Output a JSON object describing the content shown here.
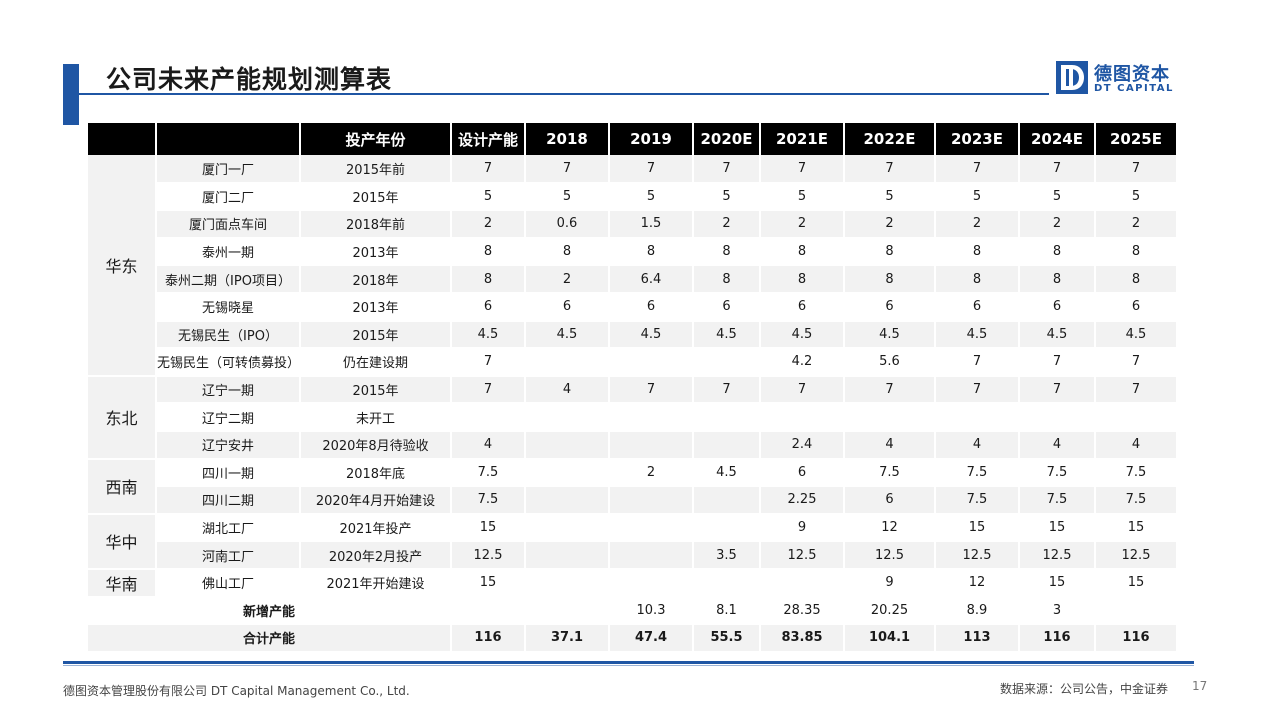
{
  "title": "公司未来产能规划测算表",
  "logo": {
    "cn": "德图资本",
    "en": "DT CAPITAL"
  },
  "table": {
    "headers": [
      "",
      "",
      "投产年份",
      "设计产能",
      "2018",
      "2019",
      "2020E",
      "2021E",
      "2022E",
      "2023E",
      "2024E",
      "2025E"
    ],
    "groups": [
      {
        "region": "华东",
        "rows": [
          {
            "plant": "厦门一厂",
            "year": "2015年前",
            "values": [
              "7",
              "7",
              "7",
              "7",
              "7",
              "7",
              "7",
              "7",
              "7"
            ]
          },
          {
            "plant": "厦门二厂",
            "year": "2015年",
            "values": [
              "5",
              "5",
              "5",
              "5",
              "5",
              "5",
              "5",
              "5",
              "5"
            ]
          },
          {
            "plant": "厦门面点车间",
            "year": "2018年前",
            "values": [
              "2",
              "0.6",
              "1.5",
              "2",
              "2",
              "2",
              "2",
              "2",
              "2"
            ]
          },
          {
            "plant": "泰州一期",
            "year": "2013年",
            "values": [
              "8",
              "8",
              "8",
              "8",
              "8",
              "8",
              "8",
              "8",
              "8"
            ]
          },
          {
            "plant": "泰州二期（IPO项目）",
            "year": "2018年",
            "values": [
              "8",
              "2",
              "6.4",
              "8",
              "8",
              "8",
              "8",
              "8",
              "8"
            ]
          },
          {
            "plant": "无锡晓星",
            "year": "2013年",
            "values": [
              "6",
              "6",
              "6",
              "6",
              "6",
              "6",
              "6",
              "6",
              "6"
            ]
          },
          {
            "plant": "无锡民生（IPO）",
            "year": "2015年",
            "values": [
              "4.5",
              "4.5",
              "4.5",
              "4.5",
              "4.5",
              "4.5",
              "4.5",
              "4.5",
              "4.5"
            ]
          },
          {
            "plant": "无锡民生（可转债募投）",
            "year": "仍在建设期",
            "values": [
              "7",
              "",
              "",
              "",
              "4.2",
              "5.6",
              "7",
              "7",
              "7"
            ]
          }
        ]
      },
      {
        "region": "东北",
        "rows": [
          {
            "plant": "辽宁一期",
            "year": "2015年",
            "values": [
              "7",
              "4",
              "7",
              "7",
              "7",
              "7",
              "7",
              "7",
              "7"
            ]
          },
          {
            "plant": "辽宁二期",
            "year": "未开工",
            "values": [
              "",
              "",
              "",
              "",
              "",
              "",
              "",
              "",
              ""
            ]
          },
          {
            "plant": "辽宁安井",
            "year": "2020年8月待验收",
            "values": [
              "4",
              "",
              "",
              "",
              "2.4",
              "4",
              "4",
              "4",
              "4"
            ]
          }
        ]
      },
      {
        "region": "西南",
        "rows": [
          {
            "plant": "四川一期",
            "year": "2018年底",
            "values": [
              "7.5",
              "",
              "2",
              "4.5",
              "6",
              "7.5",
              "7.5",
              "7.5",
              "7.5"
            ]
          },
          {
            "plant": "四川二期",
            "year": "2020年4月开始建设",
            "values": [
              "7.5",
              "",
              "",
              "",
              "2.25",
              "6",
              "7.5",
              "7.5",
              "7.5"
            ]
          }
        ]
      },
      {
        "region": "华中",
        "rows": [
          {
            "plant": "湖北工厂",
            "year": "2021年投产",
            "values": [
              "15",
              "",
              "",
              "",
              "9",
              "12",
              "15",
              "15",
              "15"
            ]
          },
          {
            "plant": "河南工厂",
            "year": "2020年2月投产",
            "values": [
              "12.5",
              "",
              "",
              "3.5",
              "12.5",
              "12.5",
              "12.5",
              "12.5",
              "12.5"
            ]
          }
        ]
      },
      {
        "region": "华南",
        "rows": [
          {
            "plant": "佛山工厂",
            "year": "2021年开始建设",
            "values": [
              "15",
              "",
              "",
              "",
              "",
              "9",
              "12",
              "15",
              "15"
            ]
          }
        ]
      }
    ],
    "summary": [
      {
        "label": "新增产能",
        "values": [
          "",
          "",
          "10.3",
          "8.1",
          "28.35",
          "20.25",
          "8.9",
          "3",
          ""
        ]
      },
      {
        "label": "合计产能",
        "values": [
          "116",
          "37.1",
          "47.4",
          "55.5",
          "83.85",
          "104.1",
          "113",
          "116",
          "116"
        ]
      }
    ]
  },
  "footer": {
    "company": "德图资本管理股份有限公司  DT Capital Management  Co., Ltd.",
    "source": "数据来源：公司公告，中金证券",
    "page": "17"
  },
  "colors": {
    "accent": "#1f56a4",
    "header_bg": "#000000",
    "row_alt": "#f2f2f2"
  },
  "icons": {
    "logo": "dt-capital-logo-icon"
  }
}
